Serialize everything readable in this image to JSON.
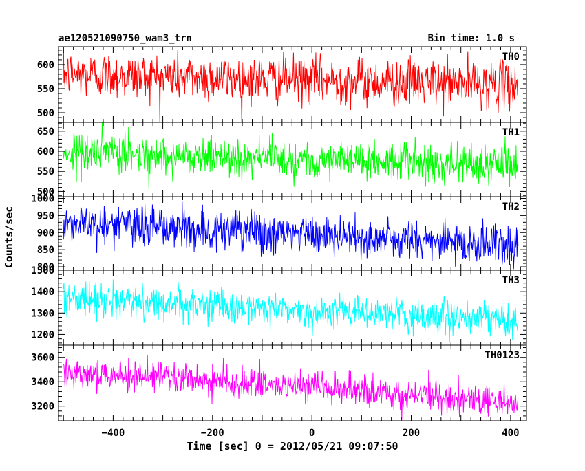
{
  "header": {
    "title": "ae120521090750_wam3_trn",
    "bin_time": "Bin time: 1.0 s"
  },
  "chart_data": {
    "type": "line",
    "title": "ae120521090750_wam3_trn",
    "subtitle": "Bin time: 1.0 s",
    "xlabel": "Time [sec] 0 = 2012/05/21 09:07:50",
    "ylabel": "Counts/sec",
    "xlim": [
      -510,
      432
    ],
    "x_start": -500,
    "x_end": 415,
    "x_step": 1,
    "x_ticks": [
      -400,
      -200,
      0,
      200,
      400
    ],
    "x_tick_labels": [
      "−400",
      "−200",
      "0",
      "200",
      "400"
    ],
    "legend": "none",
    "grid": false,
    "panels": [
      {
        "name": "TH0",
        "label": "TH0",
        "color": "#ff0000",
        "ylim": [
          480,
          637
        ],
        "y_ticks": [
          500,
          550,
          600
        ],
        "y_tick_labels": [
          "500",
          "550",
          "600"
        ],
        "trend_start": 580,
        "trend_end": 558,
        "noise_sd": 24
      },
      {
        "name": "TH1",
        "label": "TH1",
        "color": "#00ff00",
        "ylim": [
          487,
          672
        ],
        "y_ticks": [
          500,
          550,
          600,
          650
        ],
        "y_tick_labels": [
          "500",
          "550",
          "600",
          "650"
        ],
        "trend_start": 598,
        "trend_end": 566,
        "noise_sd": 24
      },
      {
        "name": "TH2",
        "label": "TH2",
        "color": "#0000ff",
        "ylim": [
          790,
          1005
        ],
        "y_ticks": [
          800,
          850,
          900,
          950,
          1000
        ],
        "y_tick_labels": [
          "800",
          "850",
          "900",
          "950",
          "1000"
        ],
        "trend_start": 930,
        "trend_end": 862,
        "noise_sd": 30
      },
      {
        "name": "TH3",
        "label": "TH3",
        "color": "#00ffff",
        "ylim": [
          1150,
          1500
        ],
        "y_ticks": [
          1200,
          1300,
          1400,
          1500
        ],
        "y_tick_labels": [
          "1200",
          "1300",
          "1400",
          "1500"
        ],
        "trend_start": 1370,
        "trend_end": 1262,
        "noise_sd": 38
      },
      {
        "name": "TH0123",
        "label": "TH0123",
        "color": "#ff00ff",
        "ylim": [
          3080,
          3700
        ],
        "y_ticks": [
          3200,
          3400,
          3600
        ],
        "y_tick_labels": [
          "3200",
          "3400",
          "3600"
        ],
        "trend_start": 3490,
        "trend_end": 3230,
        "noise_sd": 62
      }
    ]
  }
}
